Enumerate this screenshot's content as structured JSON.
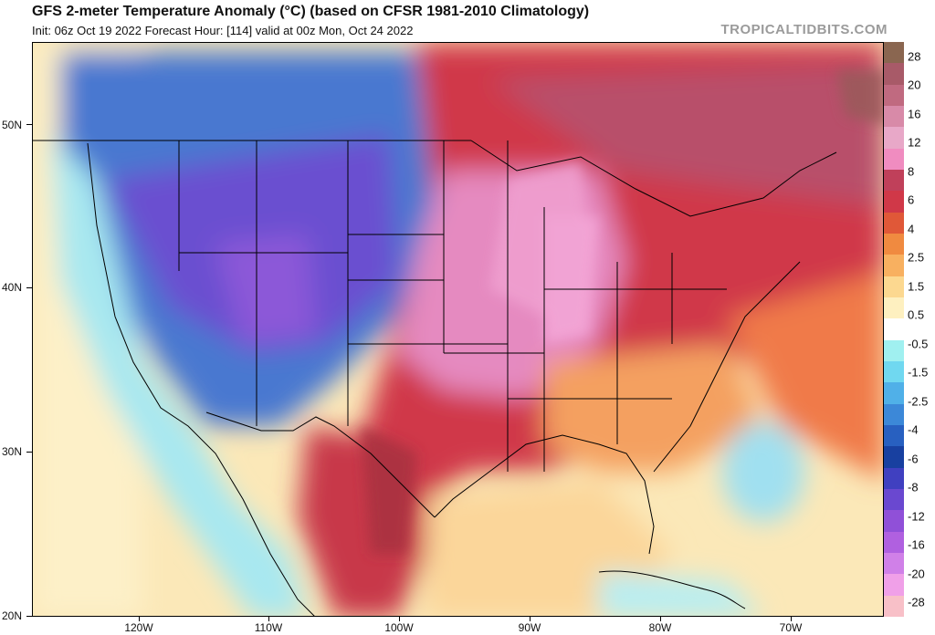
{
  "header": {
    "title": "GFS 2-meter Temperature Anomaly (°C) (based on CFSR 1981-2010 Climatology)",
    "subtitle": "Init: 06z Oct 19 2022   Forecast Hour: [114]   valid at 00z Mon, Oct 24 2022",
    "brand": "TROPICALTIDBITS.COM"
  },
  "axes": {
    "lat_labels": [
      "50N",
      "40N",
      "30N",
      "20N"
    ],
    "lon_labels": [
      "120W",
      "110W",
      "100W",
      "90W",
      "80W",
      "70W"
    ]
  },
  "colorbar": {
    "labels": [
      "28",
      "20",
      "16",
      "12",
      "8",
      "6",
      "4",
      "2.5",
      "1.5",
      "0.5",
      "-0.5",
      "-1.5",
      "-2.5",
      "-4",
      "-6",
      "-8",
      "-12",
      "-16",
      "-20",
      "-28"
    ],
    "colors": [
      "#8a6650",
      "#a85a68",
      "#c06a80",
      "#d88aa8",
      "#e8a8c8",
      "#f08cc0",
      "#c0405a",
      "#d03848",
      "#e05838",
      "#f08a40",
      "#f8b060",
      "#fcd890",
      "#fef0c0",
      "#ffffff",
      "#a0f0f0",
      "#70d8f0",
      "#50b0e8",
      "#3c88d8",
      "#2860c0",
      "#1840a0",
      "#4040c0",
      "#6a48d0",
      "#9050d8",
      "#b060e0",
      "#d080e8",
      "#f0a0e8",
      "#f8c0c8"
    ]
  },
  "colors": {
    "warm_anomaly": "#d03848",
    "strong_warm_anomaly": "#e58ac0",
    "cold_anomaly": "#4a78d0",
    "strong_cold_anomaly": "#7a58d8"
  }
}
